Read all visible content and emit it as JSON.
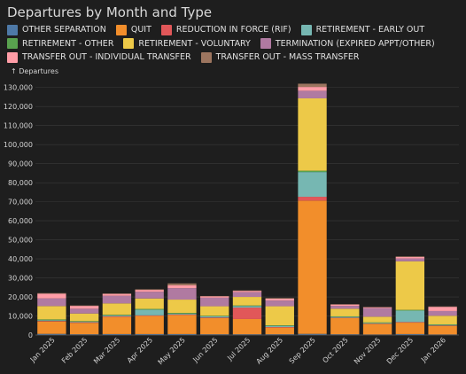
{
  "chart_data": {
    "type": "bar",
    "stacked": true,
    "title": "Departures by Month and Type",
    "ylabel": "↑ Departures",
    "ylim": [
      0,
      135000
    ],
    "yticks": [
      0,
      10000,
      20000,
      30000,
      40000,
      50000,
      60000,
      70000,
      80000,
      90000,
      100000,
      110000,
      120000,
      130000
    ],
    "ytick_labels": [
      "0",
      "10,000",
      "20,000",
      "30,000",
      "40,000",
      "50,000",
      "60,000",
      "70,000",
      "80,000",
      "90,000",
      "100,000",
      "110,000",
      "120,000",
      "130,000"
    ],
    "grid": true,
    "legend_position": "top",
    "categories": [
      "Jan 2025",
      "Feb 2025",
      "Mar 2025",
      "Apr 2025",
      "May 2025",
      "Jun 2025",
      "Jul 2025",
      "Aug 2025",
      "Sep 2025",
      "Oct 2025",
      "Nov 2025",
      "Dec 2025",
      "Jan 2026"
    ],
    "series": [
      {
        "name": "OTHER SEPARATION",
        "color": "#4e79a7",
        "values": [
          600,
          400,
          500,
          500,
          500,
          400,
          400,
          400,
          600,
          400,
          300,
          500,
          300
        ]
      },
      {
        "name": "QUIT",
        "color": "#f28e2b",
        "values": [
          6500,
          6000,
          9000,
          9500,
          10000,
          8500,
          8000,
          3500,
          70000,
          8500,
          5500,
          6000,
          4500
        ]
      },
      {
        "name": "REDUCTION IN FORCE (RIF)",
        "color": "#e15759",
        "values": [
          300,
          300,
          300,
          300,
          300,
          300,
          6000,
          300,
          2000,
          200,
          200,
          300,
          200
        ]
      },
      {
        "name": "RETIREMENT - EARLY OUT",
        "color": "#76b7b2",
        "values": [
          400,
          300,
          500,
          3000,
          400,
          600,
          800,
          600,
          13000,
          400,
          300,
          6000,
          300
        ]
      },
      {
        "name": "RETIREMENT - OTHER",
        "color": "#59a14f",
        "values": [
          400,
          300,
          300,
          400,
          400,
          300,
          300,
          300,
          700,
          300,
          300,
          400,
          300
        ]
      },
      {
        "name": "RETIREMENT - VOLUNTARY",
        "color": "#edc948",
        "values": [
          7000,
          4000,
          6000,
          5500,
          7000,
          5000,
          4500,
          10000,
          38000,
          4000,
          3000,
          25500,
          4500
        ]
      },
      {
        "name": "TERMINATION (EXPIRED APPT/OTHER)",
        "color": "#b07aa1",
        "values": [
          4000,
          2500,
          4000,
          3500,
          6000,
          4500,
          2500,
          3000,
          4000,
          1500,
          4500,
          1500,
          2500
        ]
      },
      {
        "name": "TRANSFER OUT - INDIVIDUAL TRANSFER",
        "color": "#ff9da7",
        "values": [
          2500,
          1500,
          1000,
          1000,
          1500,
          700,
          700,
          1000,
          2000,
          700,
          500,
          800,
          2200
        ]
      },
      {
        "name": "TRANSFER OUT - MASS TRANSFER",
        "color": "#9c755f",
        "values": [
          300,
          200,
          200,
          300,
          1000,
          200,
          200,
          300,
          1700,
          200,
          100,
          300,
          200
        ]
      }
    ]
  }
}
